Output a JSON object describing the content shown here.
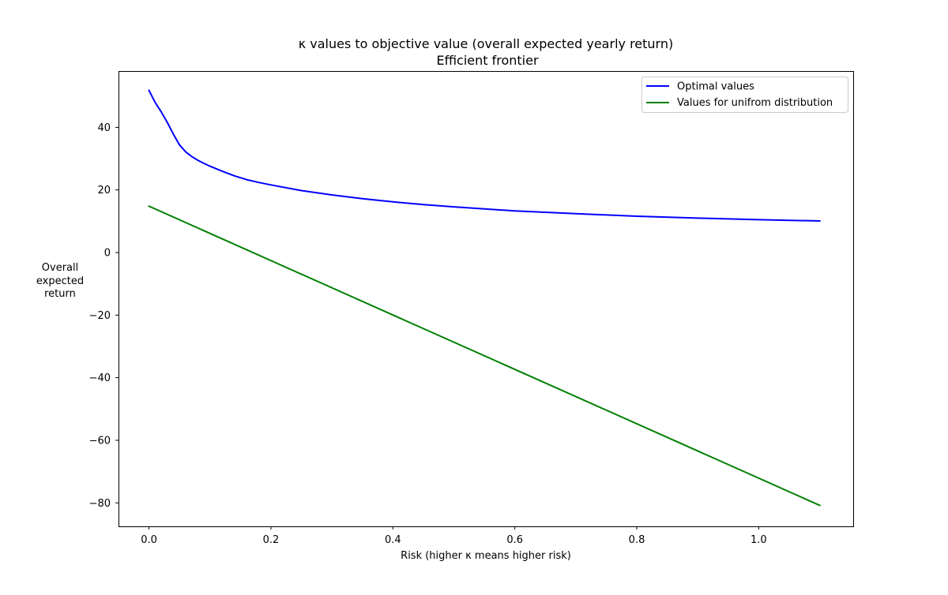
{
  "chart_data": {
    "type": "line",
    "title": "κ values to objective value (overall expected yearly return)",
    "subtitle": "Efficient frontier",
    "xlabel": "Risk (higher κ means higher risk)",
    "ylabel_lines": [
      "Overall",
      "expected",
      "return"
    ],
    "xlim": [
      -0.05,
      1.155
    ],
    "ylim": [
      -87.5,
      58
    ],
    "x_ticks": [
      0.0,
      0.2,
      0.4,
      0.6,
      0.8,
      1.0
    ],
    "x_tick_labels": [
      "0.0",
      "0.2",
      "0.4",
      "0.6",
      "0.8",
      "1.0"
    ],
    "y_ticks": [
      -80,
      -60,
      -40,
      -20,
      0,
      20,
      40
    ],
    "y_tick_labels": [
      "−80",
      "−60",
      "−40",
      "−20",
      "0",
      "20",
      "40"
    ],
    "grid": false,
    "legend_position": "top-right",
    "series": [
      {
        "name": "Optimal values",
        "color": "#0000ff",
        "x": [
          0.0,
          0.01,
          0.02,
          0.03,
          0.04,
          0.05,
          0.06,
          0.07,
          0.08,
          0.09,
          0.1,
          0.12,
          0.14,
          0.16,
          0.18,
          0.2,
          0.25,
          0.3,
          0.35,
          0.4,
          0.45,
          0.5,
          0.6,
          0.7,
          0.8,
          0.9,
          1.0,
          1.1
        ],
        "y": [
          51.8,
          48.0,
          45.0,
          41.6,
          37.8,
          34.4,
          32.2,
          30.7,
          29.5,
          28.5,
          27.6,
          26.0,
          24.5,
          23.3,
          22.4,
          21.6,
          19.8,
          18.4,
          17.2,
          16.2,
          15.3,
          14.6,
          13.3,
          12.4,
          11.6,
          11.0,
          10.5,
          10.1
        ]
      },
      {
        "name": "Values for unifrom distribution",
        "color": "#008000",
        "x": [
          0.0,
          1.1
        ],
        "y": [
          14.8,
          -80.8
        ]
      }
    ]
  }
}
